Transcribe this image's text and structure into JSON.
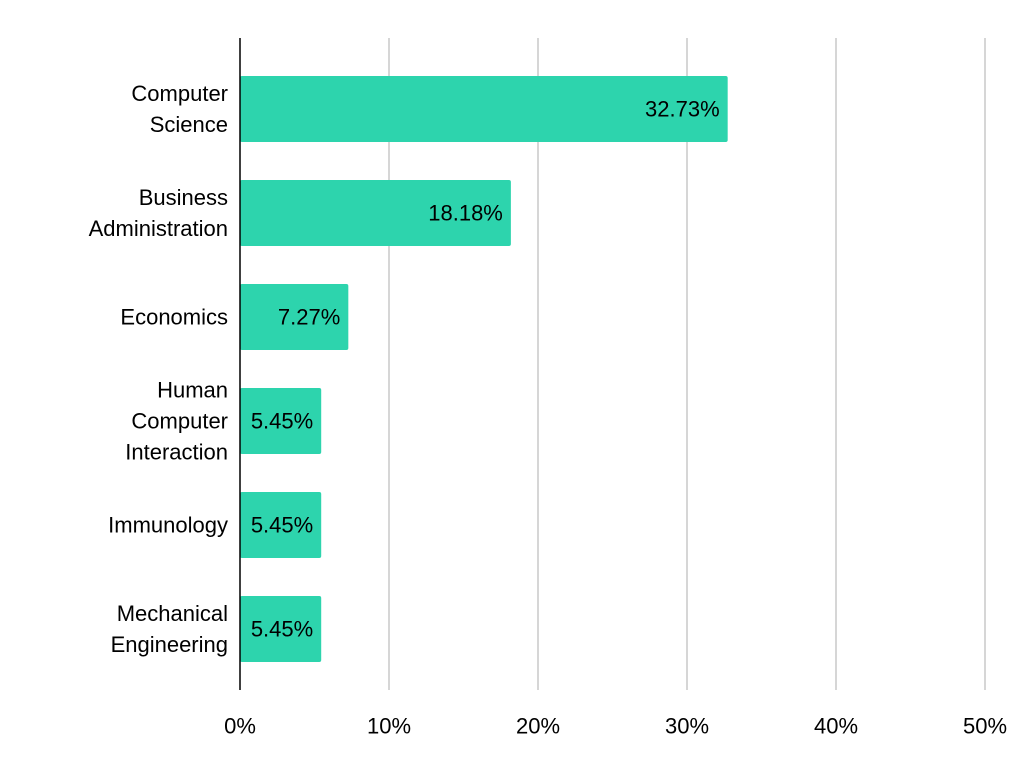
{
  "chart_data": {
    "type": "bar",
    "orientation": "horizontal",
    "categories": [
      "Computer Science",
      "Business Administration",
      "Economics",
      "Human Computer Interaction",
      "Immunology",
      "Mechanical Engineering"
    ],
    "category_label_lines": [
      [
        "Computer",
        "Science"
      ],
      [
        "Business",
        "Administration"
      ],
      [
        "Economics"
      ],
      [
        "Human",
        "Computer",
        "Interaction"
      ],
      [
        "Immunology"
      ],
      [
        "Mechanical",
        "Engineering"
      ]
    ],
    "values": [
      32.73,
      18.18,
      7.27,
      5.45,
      5.45,
      5.45
    ],
    "data_labels": [
      "32.73%",
      "18.18%",
      "7.27%",
      "5.45%",
      "5.45%",
      "5.45%"
    ],
    "x_ticks": [
      0,
      10,
      20,
      30,
      40,
      50
    ],
    "x_tick_labels": [
      "0%",
      "10%",
      "20%",
      "30%",
      "40%",
      "50%"
    ],
    "xlim": [
      0,
      50
    ],
    "title": "",
    "xlabel": "",
    "ylabel": "",
    "grid": "vertical",
    "legend": "none",
    "colors": {
      "bar": "#2dd4ad",
      "grid": "#c8c8c8",
      "axis": "#000000",
      "text": "#000000"
    }
  }
}
